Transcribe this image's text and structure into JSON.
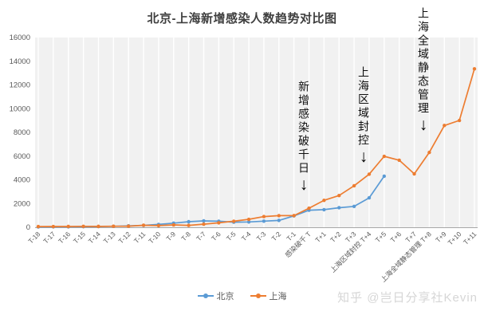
{
  "title": "北京-上海新增感染人数趋势对比图",
  "watermark": "知乎 @岂日分享社Kevin",
  "legend": [
    {
      "label": "北京",
      "color": "#5B9BD5"
    },
    {
      "label": "上海",
      "color": "#ED7D31"
    }
  ],
  "annotations": [
    {
      "text": "新增感染破千日",
      "arrow": "↓"
    },
    {
      "text": "上海区域封控",
      "arrow": "↓"
    },
    {
      "text": "上海全域静态管理",
      "arrow": "↓"
    }
  ],
  "chart_data": {
    "type": "line",
    "title": "北京-上海新增感染人数趋势对比图",
    "categories": [
      "T-18",
      "T-17",
      "T-16",
      "T-15",
      "T-14",
      "T-13",
      "T-12",
      "T-11",
      "T-10",
      "T-9",
      "T-8",
      "T-7",
      "T-6",
      "T-5",
      "T-4",
      "T-3",
      "T-2",
      "T-1",
      "感染破千 T",
      "T+1",
      "T+2",
      "T+3",
      "上海区域封控 T+4",
      "T+5",
      "T+6",
      "T+7",
      "上海全域静态管理 T+8",
      "T+9",
      "T+10",
      "T+11"
    ],
    "series": [
      {
        "name": "北京",
        "color": "#5B9BD5",
        "values": [
          30,
          35,
          40,
          50,
          60,
          80,
          120,
          160,
          240,
          350,
          470,
          540,
          510,
          430,
          450,
          520,
          580,
          962,
          1438,
          1486,
          1648,
          1760,
          2480,
          4307,
          null,
          null,
          null,
          null,
          null,
          null
        ]
      },
      {
        "name": "上海",
        "color": "#ED7D31",
        "values": [
          60,
          65,
          70,
          80,
          75,
          85,
          95,
          170,
          140,
          200,
          160,
          260,
          375,
          510,
          670,
          900,
          980,
          983,
          1609,
          2269,
          2676,
          3500,
          4477,
          5982,
          5653,
          4502,
          6311,
          8581,
          9006,
          13354
        ]
      }
    ],
    "xlabel": "",
    "ylabel": "",
    "ylim": [
      0,
      16000
    ],
    "ytick_step": 2000,
    "yticks": [
      0,
      2000,
      4000,
      6000,
      8000,
      10000,
      12000,
      14000,
      16000
    ],
    "grid": "vertical-only",
    "plot_background": "#f1f1f1",
    "gridline_color": "#ffffff",
    "axis_text_color": "#595959",
    "legend_position": "bottom"
  }
}
